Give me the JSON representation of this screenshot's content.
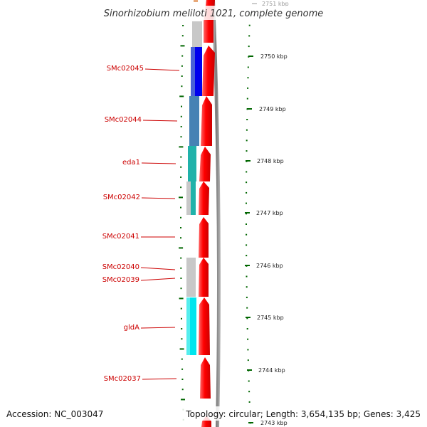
{
  "title": "Sinorhizobium meliloti 1021, complete genome",
  "accession": "Accession: NC_003047",
  "topology": "Topology: circular; Length: 3,654,135 bp; Genes: 3,425",
  "colors": {
    "gene_arrow": "#ff0000",
    "label": "#cc0000",
    "tick": "#006600",
    "backbone": "#888888"
  },
  "genes": [
    {
      "name": "",
      "color": "#c8c8c8"
    },
    {
      "name": "SMc02045",
      "color": "#0000ee"
    },
    {
      "name": "SMc02044",
      "color": "#4682b4"
    },
    {
      "name": "eda1",
      "color": "#20b2aa"
    },
    {
      "name": "SMc02042",
      "color": "#20b2aa"
    },
    {
      "name": "SMc02041",
      "color": ""
    },
    {
      "name": "SMc02040",
      "color": "#c8c8c8"
    },
    {
      "name": "SMc02039",
      "color": "#c8c8c8"
    },
    {
      "name": "gldA",
      "color": "#00e5ee"
    },
    {
      "name": "SMc02037",
      "color": ""
    }
  ],
  "kbp_ticks": [
    "2751 kbp",
    "2750 kbp",
    "2749 kbp",
    "2748 kbp",
    "2747 kbp",
    "2746 kbp",
    "2745 kbp",
    "2744 kbp",
    "2743 kbp"
  ]
}
